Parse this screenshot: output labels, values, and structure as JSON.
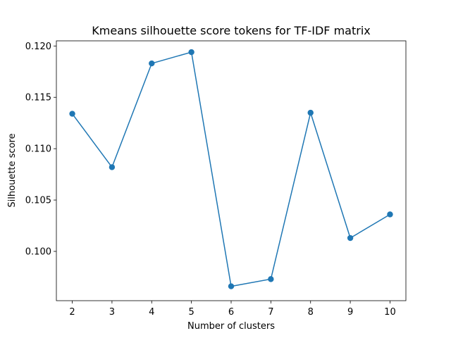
{
  "chart_data": {
    "type": "line",
    "title": "Kmeans silhouette score tokens for TF-IDF matrix",
    "xlabel": "Number of clusters",
    "ylabel": "Silhouette score",
    "x": [
      2,
      3,
      4,
      5,
      6,
      7,
      8,
      9,
      10
    ],
    "series": [
      {
        "values": [
          0.1134,
          0.1082,
          0.1183,
          0.1194,
          0.0966,
          0.0973,
          0.1135,
          0.1013,
          0.1036
        ],
        "color": "#1f77b4",
        "marker": "circle"
      }
    ],
    "xticks": [
      "2",
      "3",
      "4",
      "5",
      "6",
      "7",
      "8",
      "9",
      "10"
    ],
    "yticks": [
      "0.100",
      "0.105",
      "0.110",
      "0.115",
      "0.120"
    ],
    "ytick_values": [
      0.1,
      0.105,
      0.11,
      0.115,
      0.12
    ],
    "xlim": [
      1.6,
      10.4
    ],
    "ylim": [
      0.0952,
      0.1205
    ],
    "grid": false,
    "legend": "none"
  }
}
